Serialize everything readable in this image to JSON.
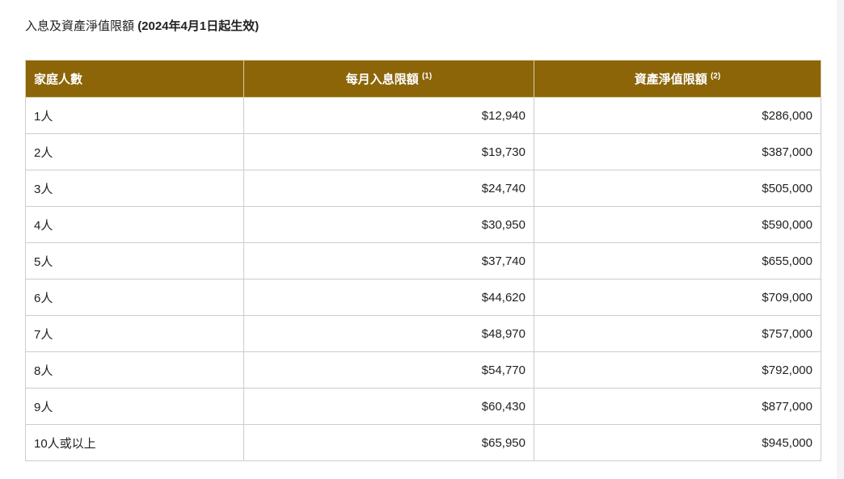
{
  "title": {
    "main": "入息及資產淨值限額",
    "effective": "(2024年4月1日起生效)"
  },
  "table": {
    "headers": [
      {
        "label": "家庭人數",
        "note": ""
      },
      {
        "label": "每月入息限額",
        "note": "(1)"
      },
      {
        "label": "資產淨值限額",
        "note": "(2)"
      }
    ],
    "rows": [
      [
        "1人",
        "$12,940",
        "$286,000"
      ],
      [
        "2人",
        "$19,730",
        "$387,000"
      ],
      [
        "3人",
        "$24,740",
        "$505,000"
      ],
      [
        "4人",
        "$30,950",
        "$590,000"
      ],
      [
        "5人",
        "$37,740",
        "$655,000"
      ],
      [
        "6人",
        "$44,620",
        "$709,000"
      ],
      [
        "7人",
        "$48,970",
        "$757,000"
      ],
      [
        "8人",
        "$54,770",
        "$792,000"
      ],
      [
        "9人",
        "$60,430",
        "$877,000"
      ],
      [
        "10人或以上",
        "$65,950",
        "$945,000"
      ]
    ]
  },
  "colors": {
    "header_bg": "#8b6508",
    "header_text": "#ffffff"
  }
}
